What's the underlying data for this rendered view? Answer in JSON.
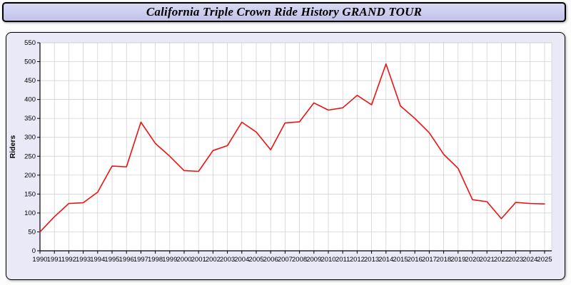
{
  "title": "California Triple Crown Ride History GRAND TOUR",
  "chart_data": {
    "type": "line",
    "title": "California Triple Crown Ride History GRAND TOUR",
    "xlabel": "",
    "ylabel": "Riders",
    "ylim": [
      0,
      550
    ],
    "ytick_step": 50,
    "grid": true,
    "legend_position": "none",
    "x": [
      1990,
      1991,
      1992,
      1993,
      1994,
      1995,
      1996,
      1997,
      1998,
      1999,
      2000,
      2001,
      2002,
      2003,
      2004,
      2005,
      2006,
      2007,
      2008,
      2009,
      2010,
      2011,
      2012,
      2013,
      2014,
      2015,
      2016,
      2017,
      2018,
      2019,
      2020,
      2021,
      2022,
      2023,
      2024,
      2025
    ],
    "series": [
      {
        "name": "Riders",
        "values": [
          50,
          90,
          125,
          127,
          155,
          224,
          222,
          340,
          284,
          250,
          212,
          210,
          265,
          278,
          340,
          314,
          267,
          338,
          341,
          391,
          372,
          378,
          411,
          386,
          494,
          383,
          350,
          312,
          255,
          218,
          135,
          130,
          85,
          128,
          125,
          124
        ]
      }
    ],
    "colors": {
      "line": "#ee1111",
      "plot_background": "#ffffff",
      "panel_background": "#e9e9f8",
      "grid": "#cccccc",
      "axis": "#000000",
      "title_bar_background": "#ccccee",
      "text": "#000000"
    }
  }
}
